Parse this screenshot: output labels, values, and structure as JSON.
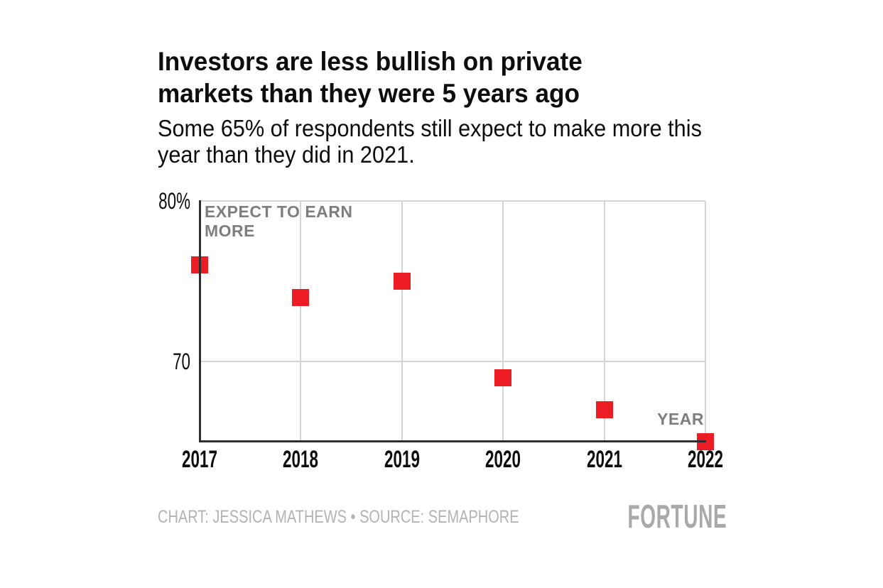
{
  "header": {
    "title_lines": [
      "Investors are less bullish on private",
      "markets than they were 5 years ago"
    ],
    "subtitle_lines": [
      "Some 65% of respondents still expect to make more this",
      "year than they did in 2021."
    ]
  },
  "chart_data": {
    "type": "scatter",
    "marker": "square",
    "x_categories": [
      "2017",
      "2018",
      "2019",
      "2020",
      "2021",
      "2022"
    ],
    "values": [
      76,
      74,
      75,
      69,
      67,
      65
    ],
    "unit": "%",
    "ylim": [
      65,
      80
    ],
    "yticks": [
      {
        "value": 80,
        "label": "80%"
      },
      {
        "value": 70,
        "label": "70"
      }
    ],
    "series_label": "EXPECT TO EARN MORE",
    "xlabel": "YEAR",
    "grid": "on",
    "legend": "none"
  },
  "colors": {
    "marker_red": "#ec1c24",
    "grid_light": "#d4d4d4",
    "axis_dark": "#2e2e2e",
    "annotation_gray": "#7e7e7e",
    "credit_gray": "#b3b3b3",
    "logo_gray": "#a9a9a9",
    "text_black": "#0d0d0d"
  },
  "footer": {
    "credit": "CHART: JESSICA MATHEWS • SOURCE: SEMAPHORE",
    "logo": "FORTUNE"
  }
}
